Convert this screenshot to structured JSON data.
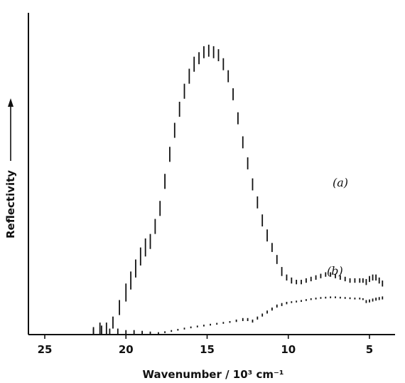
{
  "chart_data": {
    "type": "scatter",
    "xlabel": "Wavenumber / 10³ cm⁻¹",
    "ylabel": "Reflectivity",
    "xlim": [
      25,
      3.5
    ],
    "ylim": [
      0,
      1
    ],
    "x_ticks": [
      "25",
      "20",
      "15",
      "10",
      "5"
    ],
    "x_tick_values": [
      25,
      20,
      15,
      10,
      5
    ],
    "reversed_x": true,
    "y_ticks_shown": false,
    "marker": "vertical error bars",
    "series": [
      {
        "name": "(a)",
        "points": [
          [
            22.0,
            0.01,
            0.03
          ],
          [
            21.6,
            0.02,
            0.04
          ],
          [
            21.2,
            0.02,
            0.04
          ],
          [
            20.8,
            0.04,
            0.04
          ],
          [
            20.4,
            0.09,
            0.05
          ],
          [
            20.0,
            0.14,
            0.06
          ],
          [
            19.7,
            0.18,
            0.06
          ],
          [
            19.4,
            0.22,
            0.06
          ],
          [
            19.1,
            0.26,
            0.06
          ],
          [
            18.8,
            0.29,
            0.06
          ],
          [
            18.5,
            0.31,
            0.05
          ],
          [
            18.2,
            0.36,
            0.05
          ],
          [
            17.9,
            0.42,
            0.05
          ],
          [
            17.6,
            0.51,
            0.05
          ],
          [
            17.3,
            0.6,
            0.05
          ],
          [
            17.0,
            0.68,
            0.05
          ],
          [
            16.7,
            0.75,
            0.05
          ],
          [
            16.4,
            0.81,
            0.05
          ],
          [
            16.1,
            0.86,
            0.05
          ],
          [
            15.8,
            0.9,
            0.05
          ],
          [
            15.5,
            0.92,
            0.04
          ],
          [
            15.2,
            0.94,
            0.04
          ],
          [
            14.9,
            0.945,
            0.04
          ],
          [
            14.6,
            0.94,
            0.04
          ],
          [
            14.3,
            0.93,
            0.04
          ],
          [
            14.0,
            0.9,
            0.04
          ],
          [
            13.7,
            0.86,
            0.04
          ],
          [
            13.4,
            0.8,
            0.04
          ],
          [
            13.1,
            0.72,
            0.04
          ],
          [
            12.8,
            0.64,
            0.04
          ],
          [
            12.5,
            0.57,
            0.04
          ],
          [
            12.2,
            0.5,
            0.04
          ],
          [
            11.9,
            0.44,
            0.04
          ],
          [
            11.6,
            0.38,
            0.04
          ],
          [
            11.3,
            0.33,
            0.04
          ],
          [
            11.0,
            0.29,
            0.03
          ],
          [
            10.7,
            0.25,
            0.03
          ],
          [
            10.4,
            0.21,
            0.03
          ],
          [
            10.1,
            0.19,
            0.02
          ],
          [
            9.8,
            0.18,
            0.02
          ],
          [
            9.5,
            0.175,
            0.015
          ],
          [
            9.2,
            0.175,
            0.015
          ],
          [
            8.9,
            0.18,
            0.015
          ],
          [
            8.6,
            0.185,
            0.015
          ],
          [
            8.3,
            0.19,
            0.015
          ],
          [
            8.0,
            0.195,
            0.015
          ],
          [
            7.7,
            0.2,
            0.015
          ],
          [
            7.4,
            0.2,
            0.015
          ],
          [
            7.1,
            0.195,
            0.015
          ],
          [
            6.8,
            0.19,
            0.015
          ],
          [
            6.5,
            0.185,
            0.015
          ],
          [
            6.2,
            0.18,
            0.015
          ],
          [
            5.9,
            0.18,
            0.015
          ],
          [
            5.6,
            0.18,
            0.015
          ],
          [
            5.4,
            0.18,
            0.015
          ],
          [
            5.2,
            0.175,
            0.02
          ],
          [
            5.0,
            0.185,
            0.02
          ],
          [
            4.8,
            0.19,
            0.02
          ],
          [
            4.6,
            0.19,
            0.02
          ],
          [
            4.4,
            0.18,
            0.02
          ],
          [
            4.2,
            0.17,
            0.02
          ]
        ]
      },
      {
        "name": "(b)",
        "points": [
          [
            22.0,
            0.01,
            0.02
          ],
          [
            21.5,
            0.015,
            0.03
          ],
          [
            21.0,
            0.01,
            0.02
          ],
          [
            20.5,
            0.01,
            0.02
          ],
          [
            20.0,
            0.005,
            0.02
          ],
          [
            19.5,
            0.005,
            0.02
          ],
          [
            19.0,
            0.005,
            0.015
          ],
          [
            18.5,
            0.005,
            0.01
          ],
          [
            18.0,
            0.005,
            0.006
          ],
          [
            17.6,
            0.008,
            0.006
          ],
          [
            17.2,
            0.012,
            0.006
          ],
          [
            16.8,
            0.016,
            0.006
          ],
          [
            16.4,
            0.02,
            0.006
          ],
          [
            16.0,
            0.024,
            0.006
          ],
          [
            15.6,
            0.027,
            0.006
          ],
          [
            15.2,
            0.03,
            0.006
          ],
          [
            14.8,
            0.033,
            0.006
          ],
          [
            14.4,
            0.036,
            0.006
          ],
          [
            14.0,
            0.039,
            0.006
          ],
          [
            13.6,
            0.042,
            0.006
          ],
          [
            13.2,
            0.046,
            0.008
          ],
          [
            12.8,
            0.05,
            0.01
          ],
          [
            12.5,
            0.05,
            0.01
          ],
          [
            12.2,
            0.045,
            0.01
          ],
          [
            11.9,
            0.055,
            0.01
          ],
          [
            11.6,
            0.065,
            0.01
          ],
          [
            11.3,
            0.075,
            0.01
          ],
          [
            11.0,
            0.085,
            0.01
          ],
          [
            10.7,
            0.095,
            0.01
          ],
          [
            10.4,
            0.1,
            0.01
          ],
          [
            10.1,
            0.105,
            0.008
          ],
          [
            9.8,
            0.108,
            0.006
          ],
          [
            9.5,
            0.11,
            0.006
          ],
          [
            9.2,
            0.112,
            0.006
          ],
          [
            8.9,
            0.115,
            0.006
          ],
          [
            8.6,
            0.118,
            0.006
          ],
          [
            8.3,
            0.12,
            0.006
          ],
          [
            8.0,
            0.122,
            0.006
          ],
          [
            7.7,
            0.123,
            0.006
          ],
          [
            7.4,
            0.124,
            0.006
          ],
          [
            7.1,
            0.124,
            0.006
          ],
          [
            6.8,
            0.123,
            0.006
          ],
          [
            6.5,
            0.122,
            0.006
          ],
          [
            6.2,
            0.121,
            0.006
          ],
          [
            5.9,
            0.12,
            0.006
          ],
          [
            5.6,
            0.12,
            0.006
          ],
          [
            5.4,
            0.118,
            0.006
          ],
          [
            5.2,
            0.11,
            0.01
          ],
          [
            5.0,
            0.112,
            0.01
          ],
          [
            4.8,
            0.115,
            0.01
          ],
          [
            4.6,
            0.118,
            0.01
          ],
          [
            4.4,
            0.12,
            0.01
          ],
          [
            4.2,
            0.122,
            0.01
          ]
        ]
      }
    ]
  }
}
